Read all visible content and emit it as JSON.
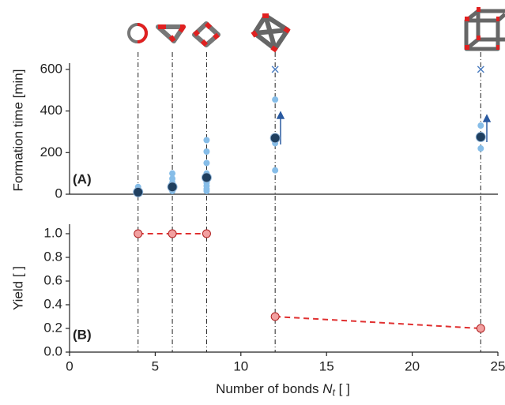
{
  "chart_data": [
    {
      "type": "scatter",
      "panel_label": "(A)",
      "ylabel": "Formation time [min]",
      "xlim": [
        0,
        25
      ],
      "ylim": [
        0,
        630
      ],
      "yticks": [
        0,
        200,
        400,
        600
      ],
      "series": [
        {
          "color": "#86bde8",
          "marker": "circle",
          "x": [
            4,
            4,
            4,
            4,
            6,
            6,
            6,
            6,
            6,
            8,
            8,
            8,
            8,
            8,
            8,
            8,
            8,
            8,
            12,
            12,
            12,
            12,
            24,
            24
          ],
          "values": [
            5,
            15,
            25,
            35,
            15,
            30,
            55,
            75,
            100,
            15,
            25,
            40,
            55,
            75,
            100,
            150,
            205,
            260,
            115,
            245,
            270,
            455,
            220,
            330
          ]
        },
        {
          "color": "#1f3f5f",
          "marker": "circle",
          "x": [
            4,
            6,
            8,
            12,
            24
          ],
          "values": [
            10,
            35,
            80,
            270,
            275
          ]
        },
        {
          "color": "#4a7cc0",
          "marker": "cross",
          "x": [
            12,
            24
          ],
          "values": [
            600,
            600
          ]
        }
      ]
    },
    {
      "type": "line",
      "panel_label": "(B)",
      "ylabel": "Yield [ ]",
      "xlabel": [
        "Number of bonds ",
        "N",
        "t",
        " [ ]"
      ],
      "xlim": [
        0,
        25
      ],
      "ylim": [
        0,
        1.08
      ],
      "xticks": [
        0,
        5,
        10,
        15,
        20,
        25
      ],
      "yticks": [
        {
          "value": 0,
          "label": "0.0"
        },
        {
          "value": 0.2,
          "label": "0.2"
        },
        {
          "value": 0.4,
          "label": "0.4"
        },
        {
          "value": 0.6,
          "label": "0.6"
        },
        {
          "value": 0.8,
          "label": "0.8"
        },
        {
          "value": 1.0,
          "label": "1.0"
        }
      ],
      "series": [
        {
          "color": "#e03030",
          "x": [
            4,
            6,
            8
          ],
          "values": [
            1.0,
            1.0,
            1.0
          ]
        },
        {
          "color": "#e03030",
          "x": [
            12,
            24
          ],
          "values": [
            0.3,
            0.2
          ]
        }
      ]
    }
  ]
}
